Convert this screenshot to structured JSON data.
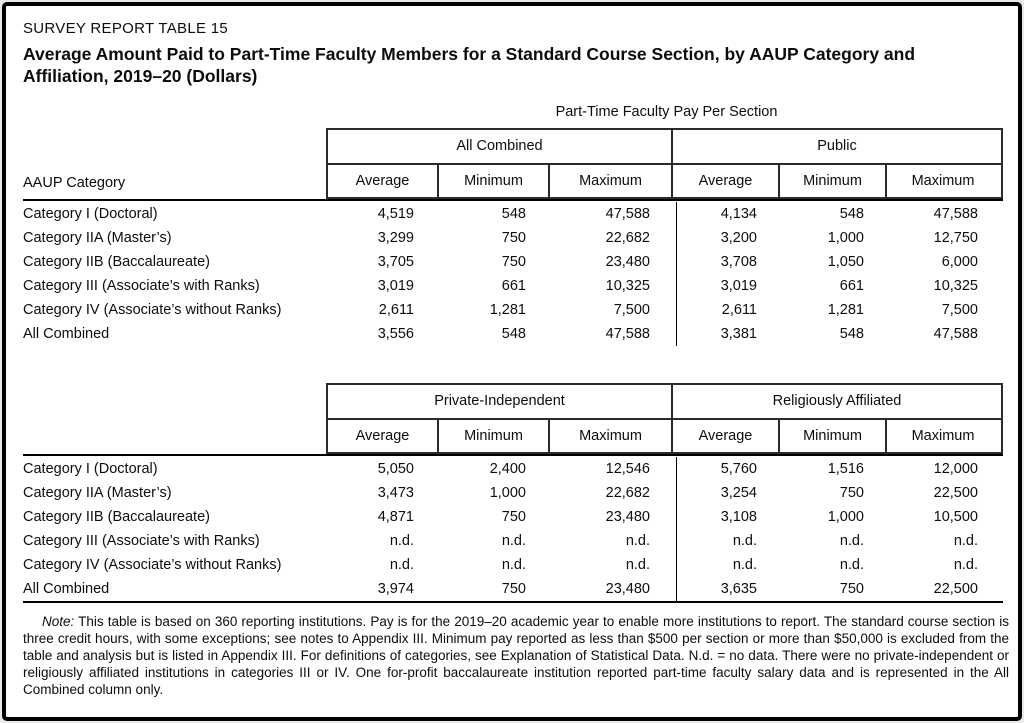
{
  "header": {
    "kicker": "SURVEY REPORT TABLE 15",
    "title_lines": [
      "Average Amount Paid to Part-Time Faculty Members for a Standard Course Section, by AAUP Category and",
      "Affiliation, 2019–20 (Dollars)"
    ]
  },
  "table": {
    "span_header": "Part-Time Faculty Pay Per Section",
    "row_header_label": "AAUP Category",
    "col_headers": [
      "Average",
      "Minimum",
      "Maximum"
    ],
    "panel1": {
      "group1": "All Combined",
      "group2": "Public",
      "rows": [
        {
          "label": "Category I (Doctoral)",
          "v": [
            "4,519",
            "548",
            "47,588",
            "4,134",
            "548",
            "47,588"
          ]
        },
        {
          "label": "Category IIA (Master’s)",
          "v": [
            "3,299",
            "750",
            "22,682",
            "3,200",
            "1,000",
            "12,750"
          ]
        },
        {
          "label": "Category IIB (Baccalaureate)",
          "v": [
            "3,705",
            "750",
            "23,480",
            "3,708",
            "1,050",
            "6,000"
          ]
        },
        {
          "label": "Category III (Associate’s with Ranks)",
          "v": [
            "3,019",
            "661",
            "10,325",
            "3,019",
            "661",
            "10,325"
          ]
        },
        {
          "label": "Category IV (Associate’s without Ranks)",
          "v": [
            "2,611",
            "1,281",
            "7,500",
            "2,611",
            "1,281",
            "7,500"
          ]
        },
        {
          "label": "All Combined",
          "v": [
            "3,556",
            "548",
            "47,588",
            "3,381",
            "548",
            "47,588"
          ]
        }
      ]
    },
    "panel2": {
      "group1": "Private-Independent",
      "group2": "Religiously Affiliated",
      "rows": [
        {
          "label": "Category I (Doctoral)",
          "v": [
            "5,050",
            "2,400",
            "12,546",
            "5,760",
            "1,516",
            "12,000"
          ]
        },
        {
          "label": "Category IIA (Master’s)",
          "v": [
            "3,473",
            "1,000",
            "22,682",
            "3,254",
            "750",
            "22,500"
          ]
        },
        {
          "label": "Category IIB (Baccalaureate)",
          "v": [
            "4,871",
            "750",
            "23,480",
            "3,108",
            "1,000",
            "10,500"
          ]
        },
        {
          "label": "Category III (Associate’s with Ranks)",
          "v": [
            "n.d.",
            "n.d.",
            "n.d.",
            "n.d.",
            "n.d.",
            "n.d."
          ]
        },
        {
          "label": "Category IV (Associate’s without Ranks)",
          "v": [
            "n.d.",
            "n.d.",
            "n.d.",
            "n.d.",
            "n.d.",
            "n.d."
          ]
        },
        {
          "label": "All Combined",
          "v": [
            "3,974",
            "750",
            "23,480",
            "3,635",
            "750",
            "22,500"
          ]
        }
      ]
    }
  },
  "note": {
    "label": "Note:",
    "body": " This table is based on 360 reporting institutions. Pay is for the 2019–20 academic year to enable more institutions to report. The standard course section is three credit hours, with some exceptions; see notes to Appendix III. Minimum pay reported as less than $500 per section or more than $50,000 is excluded from the table and analysis but is listed in Appendix III. For definitions of categories, see Explanation of Statistical Data. N.d. = no data. There were no private-independent or religiously affiliated institutions in categories III or IV. One for-profit baccalaureate institution reported part-time faculty salary data and is represented in the All Combined column only."
  }
}
